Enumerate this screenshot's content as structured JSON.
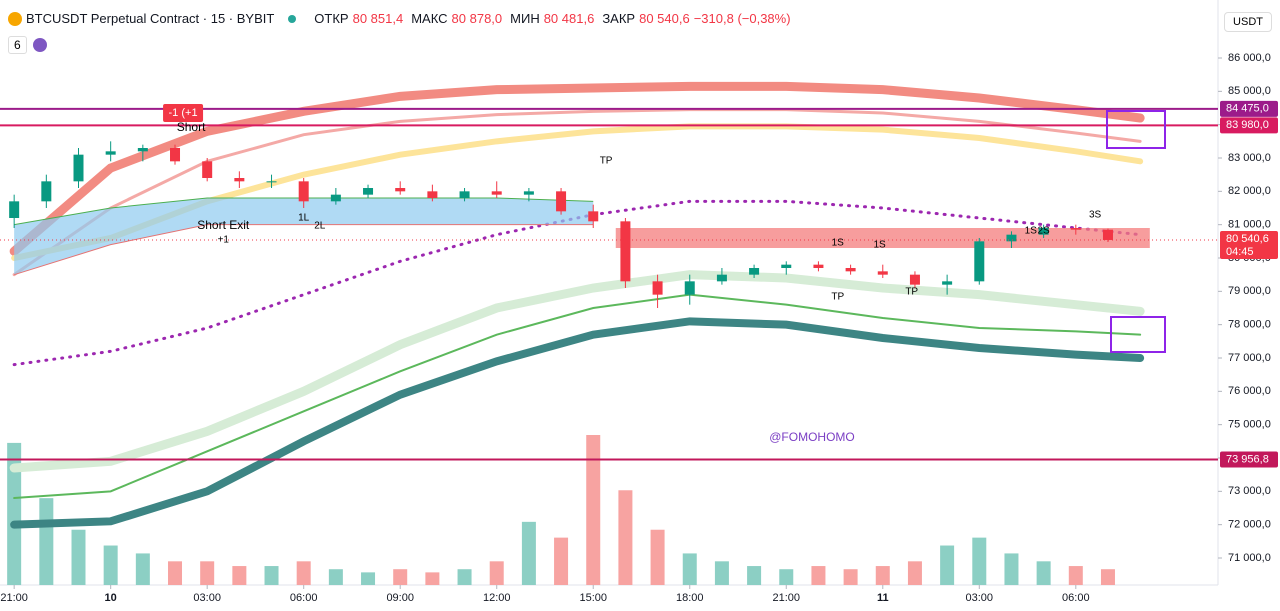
{
  "header": {
    "title": "BTCUSDT Perpetual Contract · 15 · BYBIT",
    "open_label": "ОТКР",
    "open": "80 851,4",
    "high_label": "МАКС",
    "high": "80 878,0",
    "low_label": "МИН",
    "low": "80 481,6",
    "close_label": "ЗАКР",
    "close": "80 540,6",
    "change": "−310,8 (−0,38%)",
    "indicators_count": "6",
    "currency": "USDT"
  },
  "chart_data": {
    "type": "candlestick",
    "x": [
      0,
      1,
      2,
      3,
      4,
      5,
      6,
      7,
      8,
      9,
      10,
      11,
      12,
      13,
      14,
      15,
      16,
      17,
      18,
      19,
      20,
      21,
      22,
      23,
      24,
      25,
      26,
      27,
      28,
      29,
      30,
      31,
      32,
      33,
      34
    ],
    "open": [
      81200,
      81700,
      82300,
      83100,
      83200,
      83300,
      82900,
      82400,
      82300,
      82300,
      81700,
      81900,
      82100,
      82000,
      81800,
      82000,
      81900,
      82000,
      81400,
      81100,
      79300,
      78900,
      79300,
      79500,
      79700,
      79800,
      79700,
      79600,
      79500,
      79200,
      79300,
      80500,
      80700,
      80900,
      80850
    ],
    "high": [
      81900,
      82500,
      83300,
      83500,
      83400,
      83400,
      83000,
      82600,
      82500,
      82400,
      82100,
      82200,
      82300,
      82200,
      82100,
      82300,
      82100,
      82100,
      81600,
      81200,
      79500,
      79500,
      79700,
      79800,
      79900,
      79900,
      79800,
      79800,
      79600,
      79500,
      80600,
      80800,
      81000,
      81000,
      80880
    ],
    "low": [
      80900,
      81500,
      82100,
      82900,
      82900,
      82800,
      82300,
      82100,
      82100,
      81500,
      81600,
      81800,
      81900,
      81700,
      81700,
      81800,
      81700,
      81300,
      80900,
      79100,
      78500,
      78600,
      79200,
      79400,
      79500,
      79600,
      79500,
      79400,
      79100,
      78900,
      79200,
      80300,
      80600,
      80700,
      80480
    ],
    "close": [
      81700,
      82300,
      83100,
      83200,
      83300,
      82900,
      82400,
      82300,
      82300,
      81700,
      81900,
      82100,
      82000,
      81800,
      82000,
      81900,
      82000,
      81400,
      81100,
      79300,
      78900,
      79300,
      79500,
      79700,
      79800,
      79700,
      79600,
      79500,
      79200,
      79300,
      80500,
      80700,
      80900,
      80850,
      80540.6
    ],
    "volume": [
      90,
      55,
      35,
      25,
      20,
      15,
      15,
      12,
      12,
      15,
      10,
      8,
      10,
      8,
      10,
      15,
      40,
      30,
      95,
      60,
      35,
      20,
      15,
      12,
      10,
      12,
      10,
      12,
      15,
      25,
      30,
      20,
      15,
      12,
      10
    ],
    "up_color": "#089981",
    "down_color": "#f23645",
    "volume_up_color": "#8ccfc4",
    "volume_down_color": "#f7a3a1",
    "xlim": [
      -0.44,
      37.42
    ],
    "ylim": [
      70190,
      87740
    ],
    "xticks": [
      {
        "value": 0,
        "label": "21:00"
      },
      {
        "value": 3,
        "label": "10"
      },
      {
        "value": 6,
        "label": "03:00"
      },
      {
        "value": 9,
        "label": "06:00"
      },
      {
        "value": 12,
        "label": "09:00"
      },
      {
        "value": 15,
        "label": "12:00"
      },
      {
        "value": 18,
        "label": "15:00"
      },
      {
        "value": 21,
        "label": "18:00"
      },
      {
        "value": 24,
        "label": "21:00"
      },
      {
        "value": 27,
        "label": "11"
      },
      {
        "value": 30,
        "label": "03:00"
      },
      {
        "value": 33,
        "label": "06:00"
      }
    ],
    "yticks": [
      {
        "value": 71000,
        "label": "71 000,0"
      },
      {
        "value": 72000,
        "label": "72 000,0"
      },
      {
        "value": 73000,
        "label": "73 000,0"
      },
      {
        "value": 74000,
        "label": "74 000,0"
      },
      {
        "value": 75000,
        "label": "75 000,0"
      },
      {
        "value": 76000,
        "label": "76 000,0"
      },
      {
        "value": 77000,
        "label": "77 000,0"
      },
      {
        "value": 78000,
        "label": "78 000,0"
      },
      {
        "value": 79000,
        "label": "79 000,0"
      },
      {
        "value": 80000,
        "label": "80 000,0"
      },
      {
        "value": 81000,
        "label": "81 000,0"
      },
      {
        "value": 82000,
        "label": "82 000,0"
      },
      {
        "value": 83000,
        "label": "83 000,0"
      },
      {
        "value": 84000,
        "label": "84 000,0"
      },
      {
        "value": 85000,
        "label": "85 000,0"
      },
      {
        "value": 86000,
        "label": "86 000,0"
      }
    ],
    "overlay_x": [
      0,
      3,
      6,
      9,
      12,
      15,
      18,
      21,
      24,
      27,
      30,
      33,
      35
    ],
    "overlays": [
      {
        "color": "#f28b82",
        "width": 9,
        "dash": false,
        "values": [
          80200,
          82700,
          83800,
          84400,
          84850,
          85050,
          85100,
          85150,
          85150,
          85050,
          84800,
          84450,
          84200
        ]
      },
      {
        "color": "#f4a9a6",
        "width": 3,
        "dash": false,
        "values": [
          79500,
          81500,
          82900,
          83700,
          84100,
          84300,
          84400,
          84450,
          84450,
          84350,
          84100,
          83750,
          83500
        ]
      },
      {
        "color": "#fde49a",
        "width": 6,
        "dash": false,
        "values": [
          80000,
          80600,
          81700,
          82500,
          83100,
          83500,
          83800,
          83950,
          83950,
          83850,
          83600,
          83200,
          82900
        ]
      },
      {
        "color": "#9c27b0",
        "width": 3,
        "dash": true,
        "values": [
          76800,
          77200,
          77900,
          78900,
          79900,
          80700,
          81300,
          81700,
          81700,
          81500,
          81200,
          80900,
          80700
        ]
      },
      {
        "color": "#d6ecd6",
        "width": 9,
        "dash": false,
        "values": [
          73700,
          73900,
          74800,
          76000,
          77400,
          78500,
          79100,
          79500,
          79400,
          79100,
          78900,
          78600,
          78400
        ]
      },
      {
        "color": "#5cb85c",
        "width": 2,
        "dash": false,
        "values": [
          72800,
          73000,
          74200,
          75400,
          76600,
          77700,
          78500,
          78900,
          78600,
          78200,
          77900,
          77800,
          77700
        ]
      },
      {
        "color": "#3d8584",
        "width": 8,
        "dash": false,
        "values": [
          72000,
          72100,
          73000,
          74500,
          75900,
          76900,
          77700,
          78100,
          78000,
          77600,
          77300,
          77100,
          77000
        ]
      }
    ],
    "band": {
      "color": "#8ecaef",
      "x": [
        0,
        3,
        6,
        9,
        12,
        15,
        18
      ],
      "upper": [
        81000,
        81500,
        81800,
        81800,
        81800,
        81800,
        81700
      ],
      "lower": [
        79500,
        80400,
        81000,
        81000,
        81000,
        81000,
        81000
      ]
    },
    "red_zone": {
      "color": "#f47c7c",
      "x": [
        18.7,
        35.3
      ],
      "y": [
        80300,
        80900
      ]
    },
    "levels": [
      {
        "value": 84475,
        "label": "84 475,0",
        "color": "#9c1b8a"
      },
      {
        "value": 83980,
        "label": "83 980,0",
        "color": "#d81b60"
      },
      {
        "value": 73956.8,
        "label": "73 956,8",
        "color": "#c2185b"
      }
    ],
    "last": {
      "value": 80540.6,
      "label": "80 540,6",
      "countdown": "04:45",
      "color": "#f23645"
    },
    "annotations": [
      {
        "text": "-1 (+1",
        "x": 5.25,
        "y": 84350,
        "color": "#ffffff",
        "background": "#f23645"
      },
      {
        "text": "Short",
        "x": 5.5,
        "y": 83900,
        "color": "#000000"
      },
      {
        "text": "Short Exit",
        "x": 6.5,
        "y": 80960,
        "color": "#000000"
      },
      {
        "text": "+1",
        "x": 6.5,
        "y": 80540,
        "color": "#000000"
      },
      {
        "text": "1L",
        "x": 9,
        "y": 81200,
        "color": "#000000"
      },
      {
        "text": "2L",
        "x": 9.5,
        "y": 80960,
        "color": "#000000"
      },
      {
        "text": "TP",
        "x": 18.4,
        "y": 82910,
        "color": "#000000"
      },
      {
        "text": "1S",
        "x": 25.6,
        "y": 80450,
        "color": "#000000"
      },
      {
        "text": "1S",
        "x": 26.9,
        "y": 80390,
        "color": "#000000"
      },
      {
        "text": "TP",
        "x": 25.6,
        "y": 78830,
        "color": "#000000"
      },
      {
        "text": "TP",
        "x": 27.9,
        "y": 78980,
        "color": "#000000"
      },
      {
        "text": "1S",
        "x": 31.6,
        "y": 80810,
        "color": "#000000"
      },
      {
        "text": "2S",
        "x": 32,
        "y": 80810,
        "color": "#000000"
      },
      {
        "text": "3S",
        "x": 33.6,
        "y": 81290,
        "color": "#000000"
      },
      {
        "text": "@FOMOHOMO",
        "x": 24.8,
        "y": 74600,
        "color": "#7b3fc4"
      }
    ]
  }
}
